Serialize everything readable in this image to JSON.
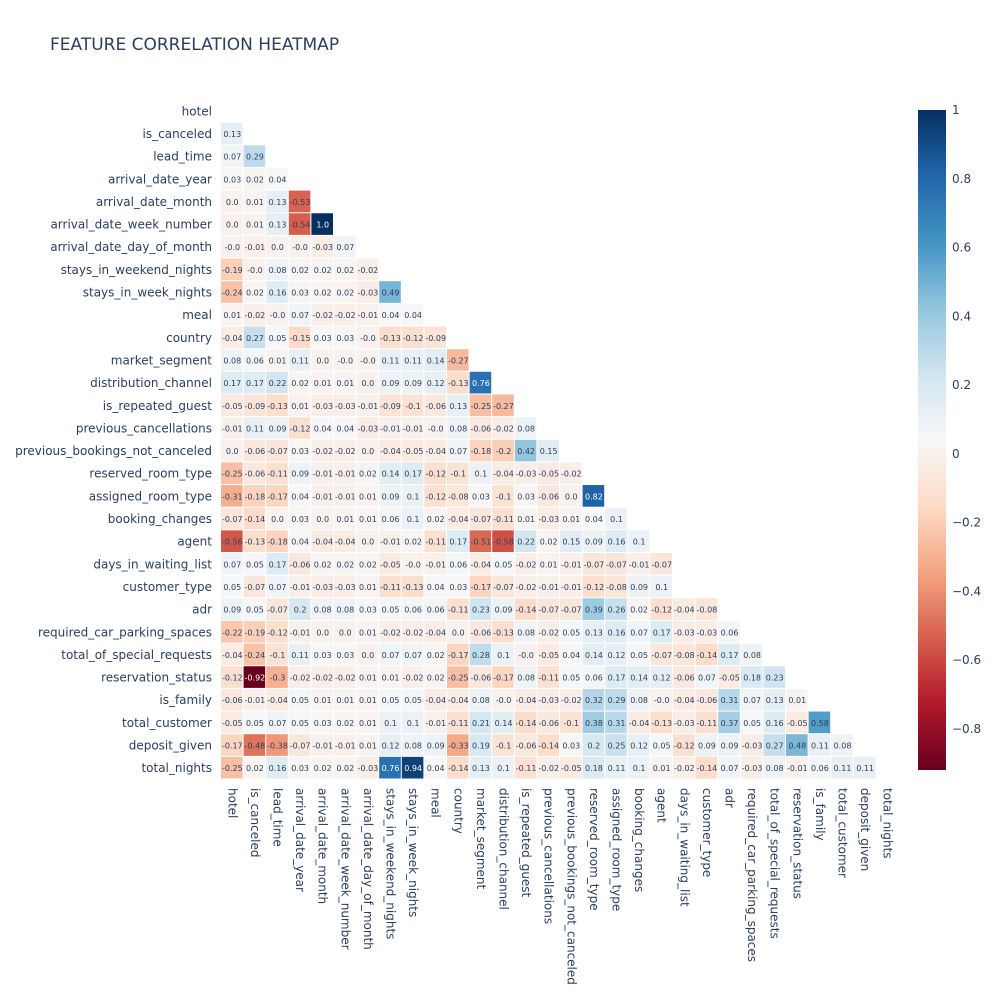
{
  "chart_data": {
    "type": "heatmap",
    "title": "FEATURE CORRELATION HEATMAP",
    "variables": [
      "hotel",
      "is_canceled",
      "lead_time",
      "arrival_date_year",
      "arrival_date_month",
      "arrival_date_week_number",
      "arrival_date_day_of_month",
      "stays_in_weekend_nights",
      "stays_in_week_nights",
      "meal",
      "country",
      "market_segment",
      "distribution_channel",
      "is_repeated_guest",
      "previous_cancellations",
      "previous_bookings_not_canceled",
      "reserved_room_type",
      "assigned_room_type",
      "booking_changes",
      "agent",
      "days_in_waiting_list",
      "customer_type",
      "adr",
      "required_car_parking_spaces",
      "total_of_special_requests",
      "reservation_status",
      "is_family",
      "total_customer",
      "deposit_given",
      "total_nights"
    ],
    "values": [
      [],
      [
        "0.13"
      ],
      [
        "0.07",
        "0.29"
      ],
      [
        "0.03",
        "0.02",
        "0.04"
      ],
      [
        "0.0",
        "0.01",
        "0.13",
        "-0.53"
      ],
      [
        "0.0",
        "0.01",
        "0.13",
        "-0.54",
        "1.0"
      ],
      [
        "-0.0",
        "-0.01",
        "0.0",
        "-0.0",
        "-0.03",
        "0.07"
      ],
      [
        "-0.19",
        "-0.0",
        "0.08",
        "0.02",
        "0.02",
        "0.02",
        "-0.02"
      ],
      [
        "-0.24",
        "0.02",
        "0.16",
        "0.03",
        "0.02",
        "0.02",
        "-0.03",
        "0.49"
      ],
      [
        "0.01",
        "-0.02",
        "-0.0",
        "0.07",
        "-0.02",
        "-0.02",
        "-0.01",
        "0.04",
        "0.04"
      ],
      [
        "-0.04",
        "0.27",
        "0.05",
        "-0.15",
        "0.03",
        "0.03",
        "-0.0",
        "-0.13",
        "-0.12",
        "-0.09"
      ],
      [
        "0.08",
        "0.06",
        "0.01",
        "0.11",
        "0.0",
        "-0.0",
        "-0.0",
        "0.11",
        "0.11",
        "0.14",
        "-0.27"
      ],
      [
        "0.17",
        "0.17",
        "0.22",
        "0.02",
        "0.01",
        "0.01",
        "0.0",
        "0.09",
        "0.09",
        "0.12",
        "-0.13",
        "0.76"
      ],
      [
        "-0.05",
        "-0.09",
        "-0.13",
        "0.01",
        "-0.03",
        "-0.03",
        "-0.01",
        "-0.09",
        "-0.1",
        "-0.06",
        "0.13",
        "-0.25",
        "-0.27"
      ],
      [
        "-0.01",
        "0.11",
        "0.09",
        "-0.12",
        "0.04",
        "0.04",
        "-0.03",
        "-0.01",
        "-0.01",
        "-0.0",
        "0.08",
        "-0.06",
        "-0.02",
        "0.08"
      ],
      [
        "0.0",
        "-0.06",
        "-0.07",
        "0.03",
        "-0.02",
        "-0.02",
        "0.0",
        "-0.04",
        "-0.05",
        "-0.04",
        "0.07",
        "-0.18",
        "-0.2",
        "0.42",
        "0.15"
      ],
      [
        "-0.25",
        "-0.06",
        "-0.11",
        "0.09",
        "-0.01",
        "-0.01",
        "0.02",
        "0.14",
        "0.17",
        "-0.12",
        "-0.1",
        "0.1",
        "-0.04",
        "-0.03",
        "-0.05",
        "-0.02"
      ],
      [
        "-0.31",
        "-0.18",
        "-0.17",
        "0.04",
        "-0.01",
        "-0.01",
        "0.01",
        "0.09",
        "0.1",
        "-0.12",
        "-0.08",
        "0.03",
        "-0.1",
        "0.03",
        "-0.06",
        "0.0",
        "0.82"
      ],
      [
        "-0.07",
        "-0.14",
        "0.0",
        "0.03",
        "0.0",
        "0.01",
        "0.01",
        "0.06",
        "0.1",
        "0.02",
        "-0.04",
        "-0.07",
        "-0.11",
        "0.01",
        "-0.03",
        "0.01",
        "0.04",
        "0.1"
      ],
      [
        "-0.56",
        "-0.13",
        "-0.18",
        "0.04",
        "-0.04",
        "-0.04",
        "0.0",
        "-0.01",
        "0.02",
        "-0.11",
        "0.17",
        "-0.51",
        "-0.58",
        "0.22",
        "0.02",
        "0.15",
        "0.09",
        "0.16",
        "0.1"
      ],
      [
        "0.07",
        "0.05",
        "0.17",
        "-0.06",
        "0.02",
        "0.02",
        "0.02",
        "-0.05",
        "-0.0",
        "-0.01",
        "0.06",
        "-0.04",
        "0.05",
        "-0.02",
        "0.01",
        "-0.01",
        "-0.07",
        "-0.07",
        "-0.01",
        "-0.07"
      ],
      [
        "0.05",
        "-0.07",
        "0.07",
        "-0.01",
        "-0.03",
        "-0.03",
        "0.01",
        "-0.11",
        "-0.13",
        "0.04",
        "0.03",
        "-0.17",
        "-0.07",
        "-0.02",
        "-0.01",
        "-0.01",
        "-0.12",
        "-0.08",
        "0.09",
        "0.1"
      ],
      [
        "0.09",
        "0.05",
        "-0.07",
        "0.2",
        "0.08",
        "0.08",
        "0.03",
        "0.05",
        "0.06",
        "0.06",
        "-0.11",
        "0.23",
        "0.09",
        "-0.14",
        "-0.07",
        "-0.07",
        "0.39",
        "0.26",
        "0.02",
        "-0.12",
        "-0.04",
        "-0.08"
      ],
      [
        "-0.22",
        "-0.19",
        "-0.12",
        "-0.01",
        "0.0",
        "0.0",
        "0.01",
        "-0.02",
        "-0.02",
        "-0.04",
        "0.0",
        "-0.06",
        "-0.13",
        "0.08",
        "-0.02",
        "0.05",
        "0.13",
        "0.16",
        "0.07",
        "0.17",
        "-0.03",
        "-0.03",
        "0.06"
      ],
      [
        "-0.04",
        "-0.24",
        "-0.1",
        "0.11",
        "0.03",
        "0.03",
        "0.0",
        "0.07",
        "0.07",
        "0.02",
        "-0.17",
        "0.28",
        "0.1",
        "-0.0",
        "-0.05",
        "0.04",
        "0.14",
        "0.12",
        "0.05",
        "-0.07",
        "-0.08",
        "-0.14",
        "0.17",
        "0.08"
      ],
      [
        "-0.12",
        "-0.92",
        "-0.3",
        "-0.02",
        "-0.02",
        "-0.02",
        "0.01",
        "0.01",
        "-0.02",
        "0.02",
        "-0.25",
        "-0.06",
        "-0.17",
        "0.08",
        "-0.11",
        "0.05",
        "0.06",
        "0.17",
        "0.14",
        "0.12",
        "-0.06",
        "0.07",
        "-0.05",
        "0.18",
        "0.23"
      ],
      [
        "-0.06",
        "-0.01",
        "-0.04",
        "0.05",
        "0.01",
        "0.01",
        "0.01",
        "0.05",
        "0.05",
        "-0.04",
        "-0.04",
        "0.08",
        "-0.0",
        "-0.04",
        "-0.03",
        "-0.02",
        "0.32",
        "0.29",
        "0.08",
        "-0.0",
        "-0.04",
        "-0.06",
        "0.31",
        "0.07",
        "0.13",
        "0.01"
      ],
      [
        "-0.05",
        "0.05",
        "0.07",
        "0.05",
        "0.03",
        "0.02",
        "0.01",
        "0.1",
        "0.1",
        "-0.01",
        "-0.11",
        "0.21",
        "0.14",
        "-0.14",
        "-0.06",
        "-0.1",
        "0.38",
        "0.31",
        "-0.04",
        "-0.13",
        "-0.03",
        "-0.11",
        "0.37",
        "0.05",
        "0.16",
        "-0.05",
        "0.58"
      ],
      [
        "-0.17",
        "-0.48",
        "-0.38",
        "-0.07",
        "-0.01",
        "-0.01",
        "0.01",
        "0.12",
        "0.08",
        "0.09",
        "-0.33",
        "0.19",
        "-0.1",
        "-0.06",
        "-0.14",
        "0.03",
        "0.2",
        "0.25",
        "0.12",
        "0.05",
        "-0.12",
        "0.09",
        "0.09",
        "-0.03",
        "0.27",
        "0.48",
        "0.11",
        "0.08"
      ],
      [
        "-0.25",
        "0.02",
        "0.16",
        "0.03",
        "0.02",
        "0.02",
        "-0.03",
        "0.76",
        "0.94",
        "0.04",
        "-0.14",
        "0.13",
        "0.1",
        "-0.11",
        "-0.02",
        "-0.05",
        "0.18",
        "0.11",
        "0.1",
        "0.01",
        "-0.02",
        "-0.14",
        "0.07",
        "-0.03",
        "0.08",
        "-0.01",
        "0.06",
        "0.11",
        "0.11"
      ]
    ],
    "colorscale": {
      "name": "RdBu",
      "min": -0.92,
      "max": 1,
      "stops": [
        "#67001f",
        "#b2182b",
        "#d6604d",
        "#f4a582",
        "#fddbc7",
        "#f7f7f7",
        "#d1e5f0",
        "#92c5de",
        "#4393c3",
        "#2166ac",
        "#053061"
      ],
      "tick_values": [
        1,
        0.8,
        0.6,
        0.4,
        0.2,
        0,
        -0.2,
        -0.4,
        -0.6,
        -0.8
      ],
      "tick_labels": [
        "1",
        "0.8",
        "0.6",
        "0.4",
        "0.2",
        "0",
        "−0.2",
        "−0.4",
        "−0.6",
        "−0.8"
      ]
    },
    "grid": false,
    "legend": "colorbar-right"
  }
}
